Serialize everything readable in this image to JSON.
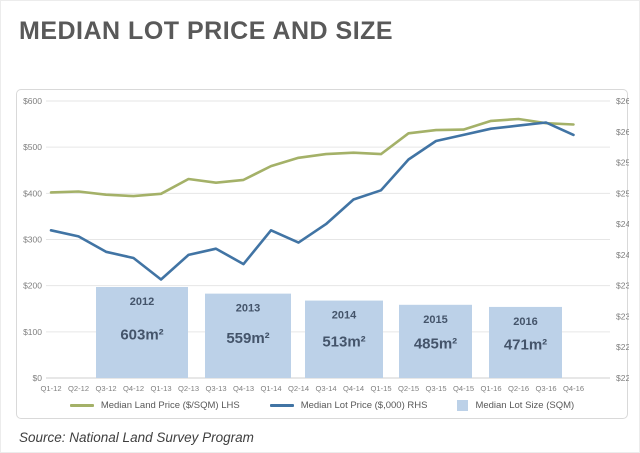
{
  "page": {
    "title": "MEDIAN LOT PRICE AND SIZE",
    "source": "Source: National Land Survey Program"
  },
  "legend": {
    "items": [
      {
        "label": "Median Land Price ($/SQM) LHS",
        "type": "line",
        "color": "#a4b168"
      },
      {
        "label": "Median Lot Price ($,000) RHS",
        "type": "line",
        "color": "#4174a4"
      },
      {
        "label": "Median Lot Size (SQM)",
        "type": "square",
        "color": "#bcd1e8"
      }
    ]
  },
  "chart_data": {
    "type": "line+bar combo, dual axis",
    "title": "MEDIAN LOT PRICE AND SIZE",
    "x_labels": [
      "Q1-12",
      "Q2-12",
      "Q3-12",
      "Q4-12",
      "Q1-13",
      "Q2-13",
      "Q3-13",
      "Q4-13",
      "Q1-14",
      "Q2-14",
      "Q3-14",
      "Q4-14",
      "Q1-15",
      "Q2-15",
      "Q3-15",
      "Q4-15",
      "Q1-16",
      "Q2-16",
      "Q3-16",
      "Q4-16"
    ],
    "series": [
      {
        "name": "Median Land Price ($/SQM) LHS",
        "type": "line",
        "axis": "left",
        "color": "#a4b168",
        "values": [
          402,
          404,
          397,
          394,
          399,
          431,
          423,
          429,
          459,
          477,
          485,
          488,
          485,
          530,
          537,
          538,
          557,
          561,
          552,
          549
        ]
      },
      {
        "name": "Median Lot Price ($,000) RHS",
        "type": "line",
        "axis": "right",
        "color": "#4174a4",
        "values": [
          244,
          243,
          240.5,
          239.5,
          236,
          240,
          241,
          238.5,
          244,
          242,
          245,
          249,
          250.5,
          255.5,
          258.5,
          259.5,
          260.5,
          261,
          261.5,
          259.5
        ]
      }
    ],
    "bars": {
      "name": "Median Lot Size (SQM)",
      "color": "#bcd1e8",
      "label_color": "#44546a",
      "items": [
        {
          "year": "2012",
          "size_sqm": 603,
          "label": "603m²"
        },
        {
          "year": "2013",
          "size_sqm": 559,
          "label": "559m²"
        },
        {
          "year": "2014",
          "size_sqm": 513,
          "label": "513m²"
        },
        {
          "year": "2015",
          "size_sqm": 485,
          "label": "485m²"
        },
        {
          "year": "2016",
          "size_sqm": 471,
          "label": "471m²"
        }
      ]
    },
    "left_axis": {
      "min": 0,
      "max": 600,
      "tick_values": [
        0,
        100,
        200,
        300,
        400,
        500,
        600
      ],
      "tick_labels": [
        "$0",
        "$100",
        "$200",
        "$300",
        "$400",
        "$500",
        "$600"
      ]
    },
    "right_axis": {
      "min": 220,
      "max": 265,
      "tick_values": [
        220,
        225,
        230,
        235,
        240,
        245,
        250,
        255,
        260,
        265
      ],
      "tick_labels": [
        "$220",
        "$225",
        "$230",
        "$235",
        "$240",
        "$245",
        "$250",
        "$255",
        "$260",
        "$265"
      ]
    },
    "grid": "horizontal gridlines at left-axis ticks",
    "legend_position": "bottom",
    "tick_label_color": "#7f7f7f"
  }
}
